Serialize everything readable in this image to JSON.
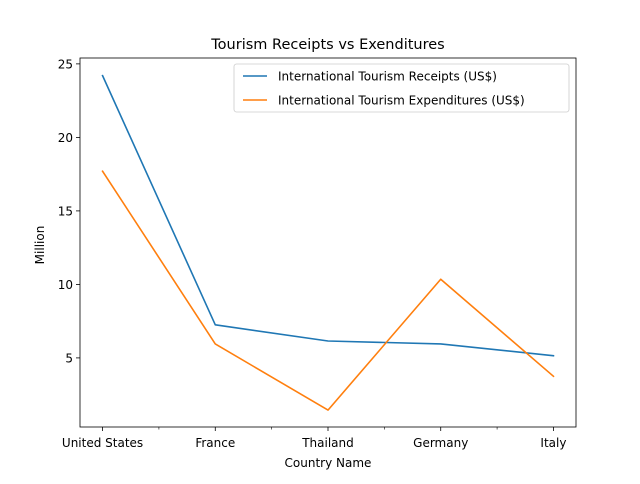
{
  "chart_data": {
    "type": "line",
    "title": "Tourism Receipts vs Exenditures",
    "xlabel": "Country Name",
    "ylabel": "Million",
    "categories": [
      "United States",
      "France",
      "Thailand",
      "Germany",
      "Italy"
    ],
    "ylim": [
      0.3,
      25.4
    ],
    "yticks": [
      5,
      10,
      15,
      20,
      25
    ],
    "grid": false,
    "legend": "top-right",
    "series": [
      {
        "name": "International Tourism Receipts (US$)",
        "color": "#1f77b4",
        "values": [
          24.2,
          7.25,
          6.15,
          5.95,
          5.15
        ]
      },
      {
        "name": "International Tourism Expenditures (US$)",
        "color": "#ff7f0e",
        "values": [
          17.7,
          5.95,
          1.45,
          10.35,
          3.75
        ]
      }
    ]
  }
}
